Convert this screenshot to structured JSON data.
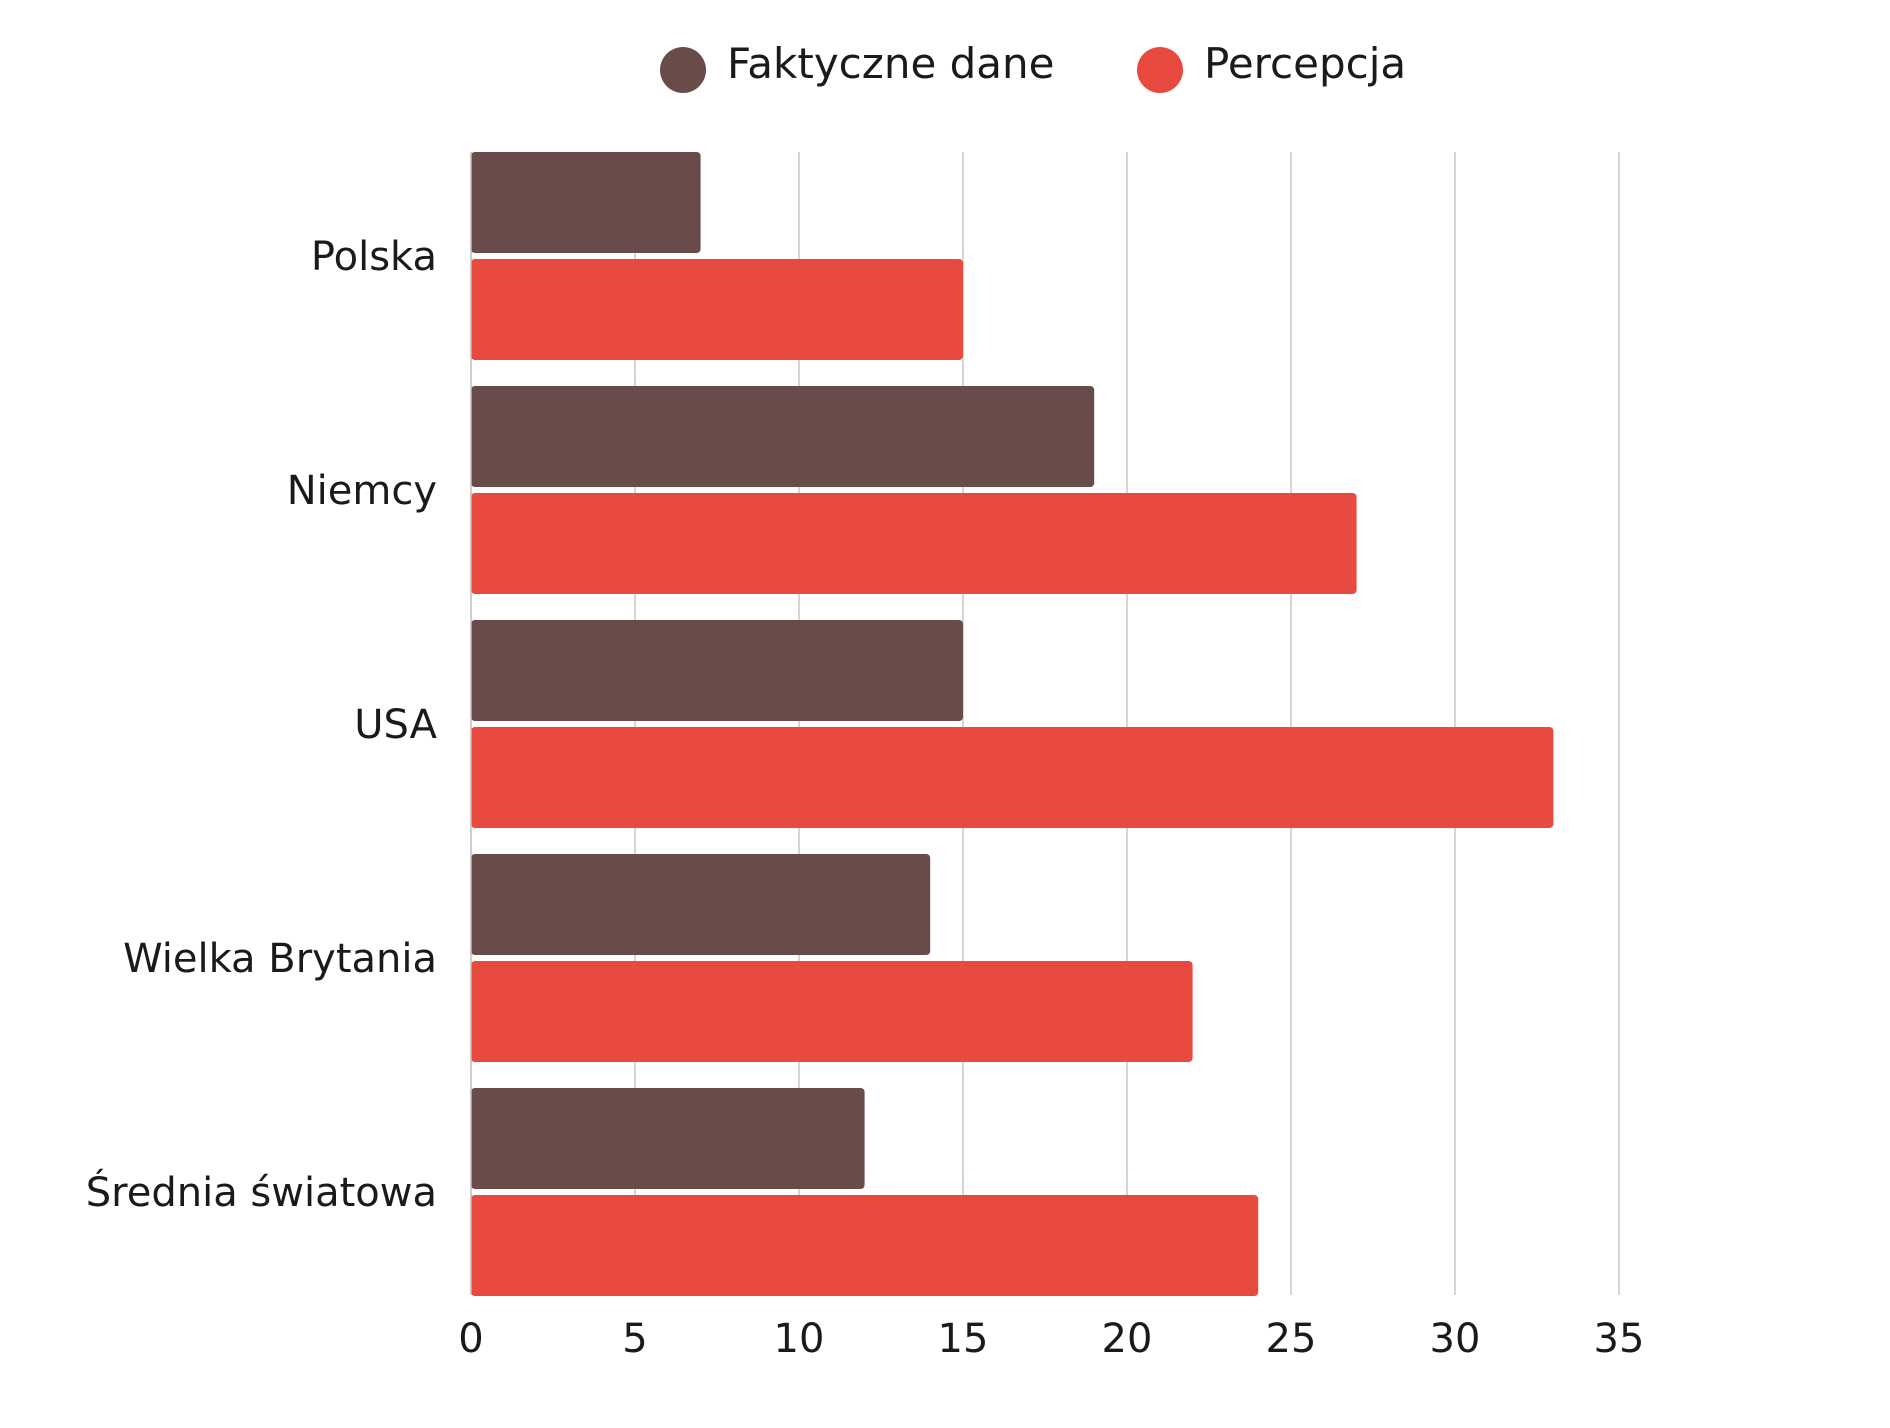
{
  "chart_data": {
    "type": "bar",
    "orientation": "horizontal",
    "categories": [
      "Polska",
      "Niemcy",
      "USA",
      "Wielka Brytania",
      "Średnia światowa"
    ],
    "series": [
      {
        "name": "Faktyczne dane",
        "color": "#694b49",
        "values": [
          7,
          19,
          15,
          14,
          12
        ]
      },
      {
        "name": "Percepcja",
        "color": "#e84a3f",
        "values": [
          15,
          27,
          33,
          22,
          24
        ]
      }
    ],
    "x_ticks": [
      "0",
      "5",
      "10",
      "15",
      "20",
      "25",
      "30",
      "35"
    ],
    "xlim": [
      0,
      35
    ],
    "grid": "vertical",
    "legend_position": "top-center",
    "title": "",
    "xlabel": "",
    "ylabel": ""
  }
}
